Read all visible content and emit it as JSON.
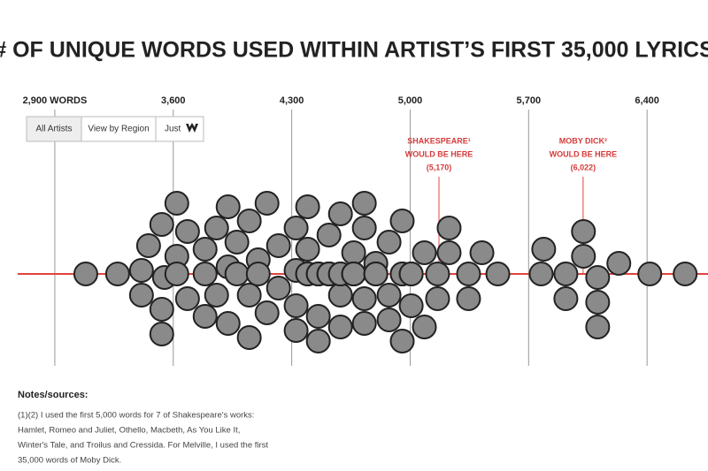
{
  "chart_data": {
    "type": "beeswarm",
    "title": "# OF UNIQUE WORDS USED WITHIN ARTIST’S FIRST 35,000 LYRICS",
    "x": [
      3083,
      3271,
      3412,
      3412,
      3454,
      3532,
      3532,
      3532,
      3548,
      3621,
      3621,
      3621,
      3684,
      3684,
      3788,
      3788,
      3788,
      3856,
      3856,
      3924,
      3924,
      3924,
      3976,
      3976,
      4049,
      4049,
      4049,
      4102,
      4102,
      4154,
      4154,
      4222,
      4222,
      4326,
      4326,
      4326,
      4326,
      4394,
      4394,
      4394,
      4394,
      4457,
      4457,
      4457,
      4457,
      4457,
      4520,
      4520,
      4520,
      4520,
      4520,
      4588,
      4588,
      4588,
      4588,
      4588,
      4666,
      4666,
      4666,
      4666,
      4666,
      4729,
      4729,
      4729,
      4729,
      4797,
      4797,
      4797,
      4797,
      4875,
      4875,
      4875,
      4953,
      4953,
      4953,
      4953,
      5006,
      5006,
      5006,
      5084,
      5084,
      5162,
      5162,
      5230,
      5230,
      5345,
      5345,
      5424,
      5518,
      5774,
      5789,
      5920,
      5920,
      6024,
      6024,
      6108,
      6108,
      6108,
      6233,
      6416,
      6625
    ],
    "xlim": [
      2576,
      6760
    ],
    "xticks": [
      {
        "value": 2900,
        "label": "2,900 WORDS"
      },
      {
        "value": 3600,
        "label": "3,600"
      },
      {
        "value": 4300,
        "label": "4,300"
      },
      {
        "value": 5000,
        "label": "5,000"
      },
      {
        "value": 5700,
        "label": "5,700"
      },
      {
        "value": 6400,
        "label": "6,400"
      }
    ],
    "grid": true,
    "color": "#8a8a8a",
    "baseline_color": "#e0443e",
    "annotations": [
      {
        "lines": [
          "SHAKESPEARE¹",
          "WOULD BE HERE"
        ],
        "label": "(5,170)",
        "value": 5170
      },
      {
        "lines": [
          "MOBY DICK²",
          "WOULD BE HERE"
        ],
        "label": "(6,022)",
        "value": 6022
      }
    ]
  },
  "controls": [
    "All Artists",
    "View by Region",
    "Just"
  ],
  "notes": {
    "title": "Notes/sources:",
    "lines": [
      "(1)(2) I used the first 5,000 words for 7 of Shakespeare's works:",
      "Hamlet, Romeo and Juliet, Othello, Macbeth, As You Like It,",
      "Winter's Tale, and Troilus and Cressida. For Melville, I used the first",
      "35,000 words of Moby Dick."
    ]
  }
}
